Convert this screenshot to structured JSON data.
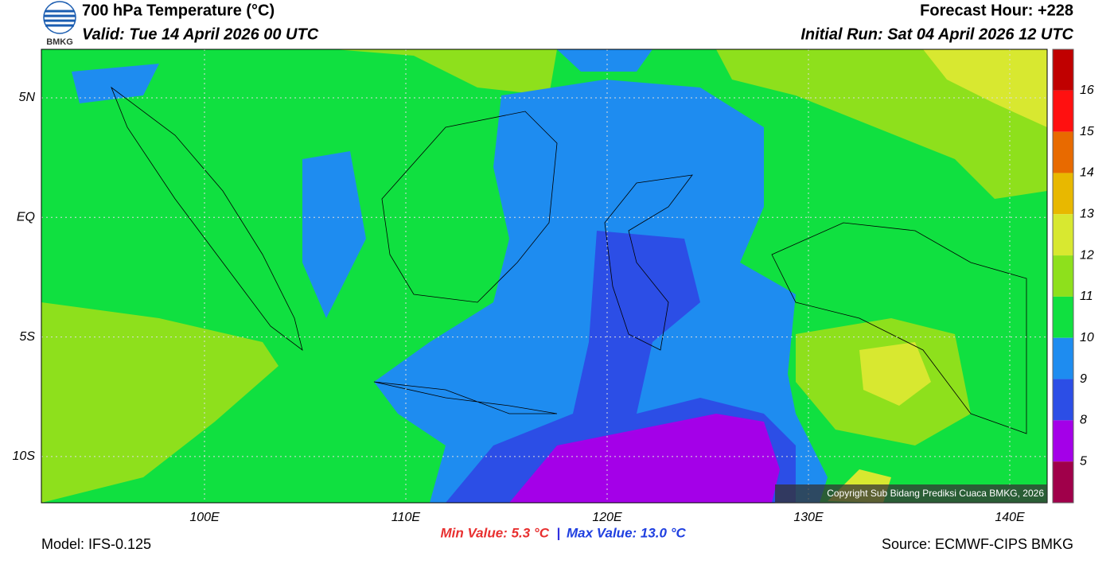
{
  "header": {
    "logo": "BMKG",
    "title": "700 hPa Temperature (°C)",
    "valid": "Valid: Tue 14 April 2026 00 UTC",
    "forecast_hour": "Forecast Hour: +228",
    "initial_run": "Initial Run: Sat 04 April 2026 12 UTC"
  },
  "map": {
    "lat_labels": [
      "5N",
      "EQ",
      "5S",
      "10S"
    ],
    "lon_labels": [
      "100E",
      "110E",
      "120E",
      "130E",
      "140E"
    ],
    "copyright": "Copyright Sub Bidang Prediksi Cuaca BMKG, 2026"
  },
  "colorbar": {
    "labels": [
      "16",
      "15",
      "14",
      "13",
      "12",
      "11",
      "10",
      "9",
      "8",
      "5"
    ],
    "colors": [
      "#c00000",
      "#ff1010",
      "#e86a00",
      "#e8b800",
      "#d8e830",
      "#8ee01c",
      "#10e040",
      "#1e8cf0",
      "#2c4ee6",
      "#a400e8",
      "#a0004a"
    ]
  },
  "footer": {
    "model": "Model: IFS-0.125",
    "min": "Min Value: 5.3 °C",
    "separator": "|",
    "max": "Max Value: 13.0 °C",
    "source": "Source: ECMWF-CIPS BMKG"
  }
}
